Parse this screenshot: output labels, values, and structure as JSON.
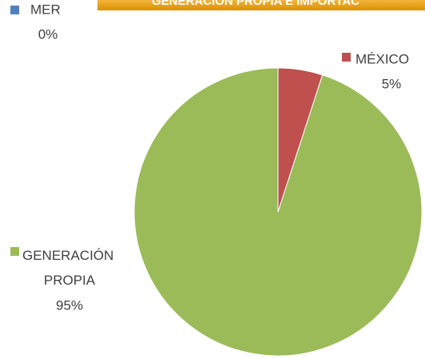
{
  "chart_data": {
    "type": "pie",
    "title": "GENERACIÓN PROPIA E IMPORTAC",
    "categories": [
      "MER",
      "MÉXICO",
      "GENERACIÓN PROPIA"
    ],
    "values": [
      0,
      5,
      95
    ],
    "value_labels": [
      "0%",
      "5%",
      "95%"
    ],
    "colors": [
      "#4f81bd",
      "#c0504d",
      "#9bbb59"
    ]
  }
}
